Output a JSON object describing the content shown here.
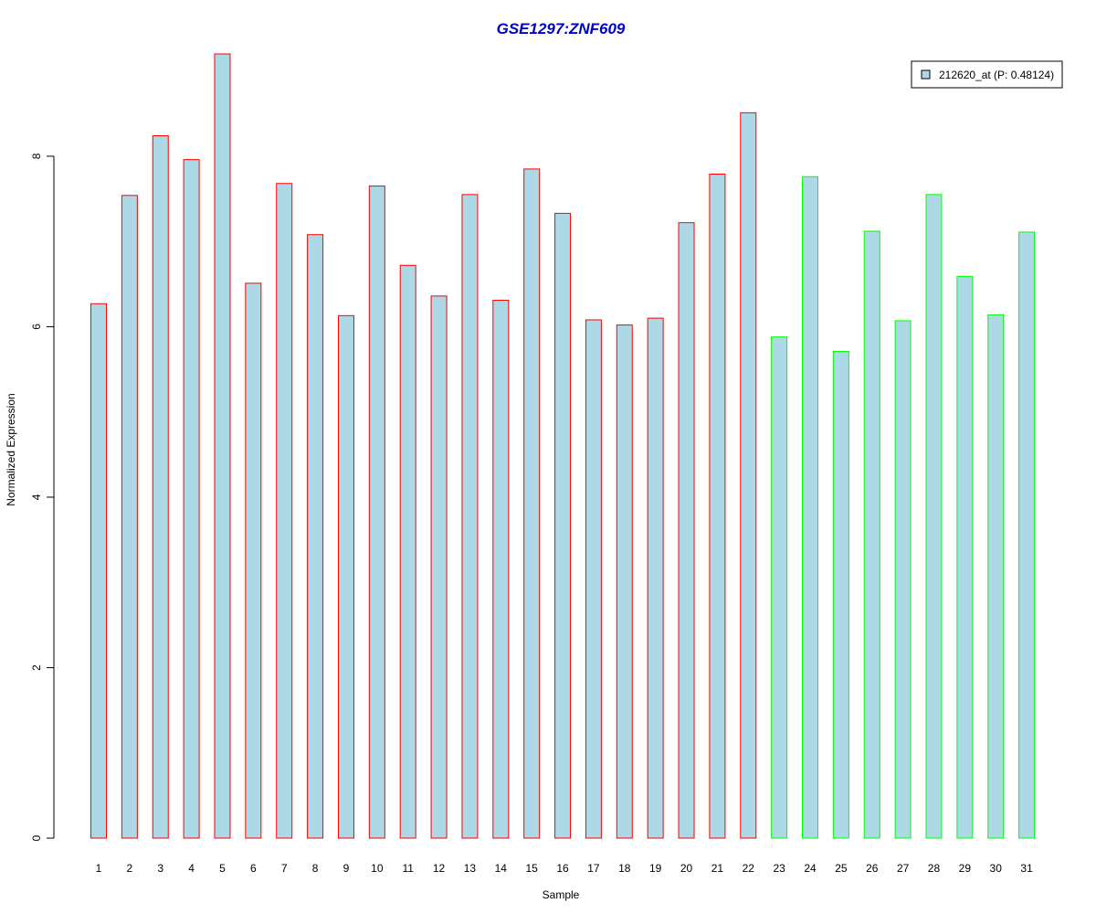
{
  "chart_data": {
    "type": "bar",
    "title": "GSE1297:ZNF609",
    "xlabel": "Sample",
    "ylabel": "Normalized Expression",
    "ylim": [
      0,
      9.2
    ],
    "yticks": [
      0,
      2,
      4,
      6,
      8
    ],
    "categories": [
      "1",
      "2",
      "3",
      "4",
      "5",
      "6",
      "7",
      "8",
      "9",
      "10",
      "11",
      "12",
      "13",
      "14",
      "15",
      "16",
      "17",
      "18",
      "19",
      "20",
      "21",
      "22",
      "23",
      "24",
      "25",
      "26",
      "27",
      "28",
      "29",
      "30",
      "31"
    ],
    "series": [
      {
        "name": "212620_at (P: 0.48124)",
        "values": [
          6.27,
          7.54,
          8.24,
          7.96,
          9.2,
          6.51,
          7.68,
          7.08,
          6.13,
          7.65,
          6.72,
          6.36,
          7.55,
          6.31,
          7.85,
          7.33,
          6.08,
          6.02,
          6.1,
          7.22,
          7.79,
          8.51,
          5.88,
          7.76,
          5.71,
          7.12,
          6.07,
          7.55,
          6.59,
          6.14,
          7.11
        ]
      }
    ],
    "groups": [
      {
        "from": 1,
        "to": 22,
        "border_color": "#ff0000"
      },
      {
        "from": 23,
        "to": 31,
        "border_color": "#00ff00"
      }
    ],
    "bar_fill": "#add8e6",
    "title_color": "#0000cd",
    "legend_position": "top-right",
    "grid": false
  }
}
